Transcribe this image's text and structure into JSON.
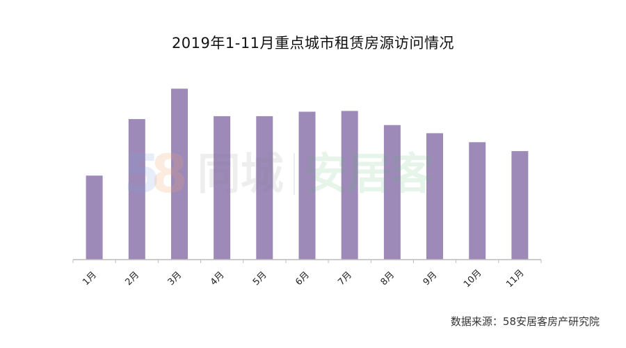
{
  "chart_data": {
    "type": "bar",
    "title": "2019年1-11月重点城市租赁房源访问情况",
    "categories": [
      "1月",
      "2月",
      "3月",
      "4月",
      "5月",
      "6月",
      "7月",
      "8月",
      "9月",
      "10月",
      "11月"
    ],
    "values": [
      113,
      189,
      230,
      193,
      193,
      199,
      200,
      181,
      170,
      158,
      146
    ],
    "ylim": [
      0,
      250
    ],
    "y_axis_shown": false,
    "grid": false,
    "bar_color": "#9e8ab9",
    "axis_color": "#bcbcbc",
    "legend": "none"
  },
  "watermark": {
    "logo_58": "58",
    "tongcheng": "同城",
    "anjuke": "安居客"
  },
  "source_note": "数据来源：58安居客房产研究院"
}
